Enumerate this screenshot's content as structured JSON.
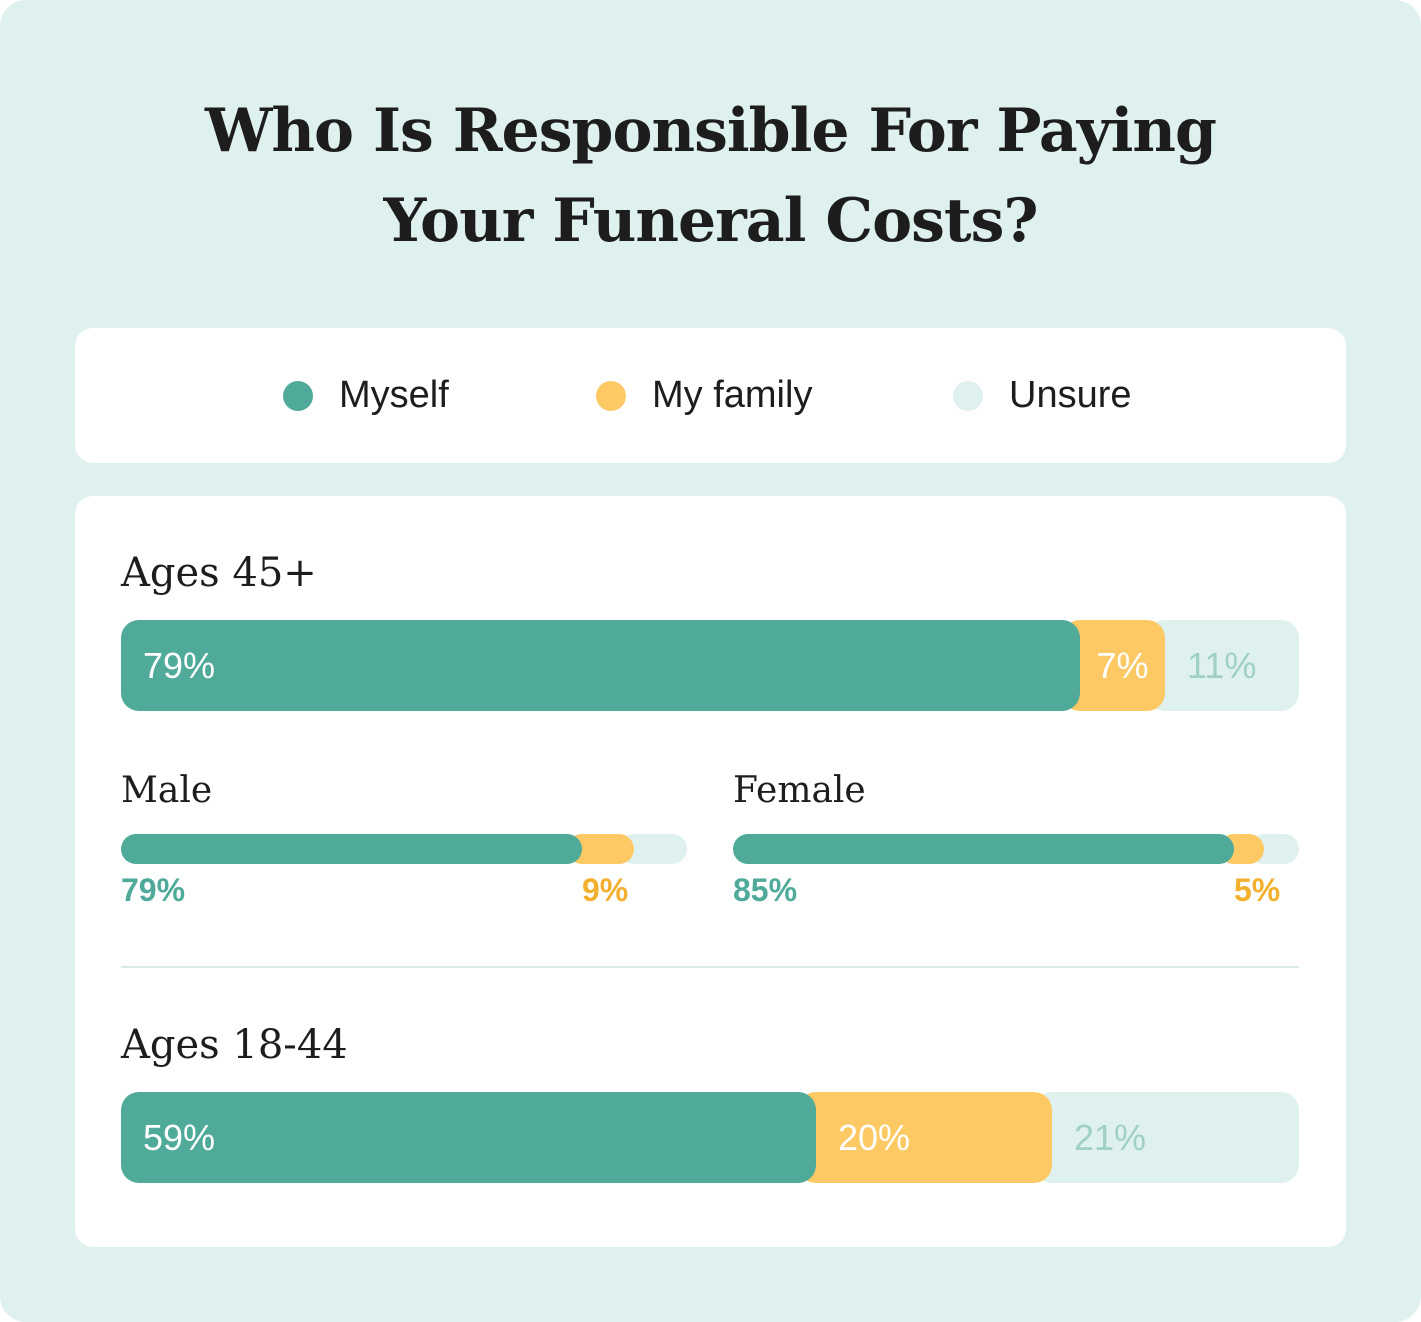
{
  "title_line1": "Who Is Responsible For Paying",
  "title_line2": "Your Funeral Costs?",
  "colors": {
    "myself": "#4faa9a",
    "family": "#fdc964",
    "unsure": "#dff1ef",
    "myself_text": "#4faa9a",
    "family_text": "#f3b02f",
    "unsure_text": "#9fcfc7"
  },
  "legend": [
    {
      "label": "Myself",
      "color_key": "myself"
    },
    {
      "label": "My family",
      "color_key": "family"
    },
    {
      "label": "Unsure",
      "color_key": "unsure"
    }
  ],
  "chart_data": {
    "type": "bar",
    "orientation": "horizontal",
    "stacked": true,
    "categories": [
      "Ages 45+",
      "Male",
      "Female",
      "Ages 18-44"
    ],
    "series": [
      {
        "name": "Myself",
        "values": [
          79,
          79,
          85,
          59
        ],
        "labels": [
          "79%",
          "79%",
          "85%",
          "59%"
        ]
      },
      {
        "name": "My family",
        "values": [
          7,
          9,
          5,
          20
        ],
        "labels": [
          "7%",
          "9%",
          "5%",
          "20%"
        ]
      },
      {
        "name": "Unsure",
        "values": [
          11,
          9,
          6,
          21
        ],
        "labels": [
          "11%",
          "",
          "",
          "21%"
        ]
      }
    ],
    "groups": {
      "ages_45": "Ages 45+",
      "male": "Male",
      "female": "Female",
      "ages_18_44": "Ages 18-44"
    }
  }
}
